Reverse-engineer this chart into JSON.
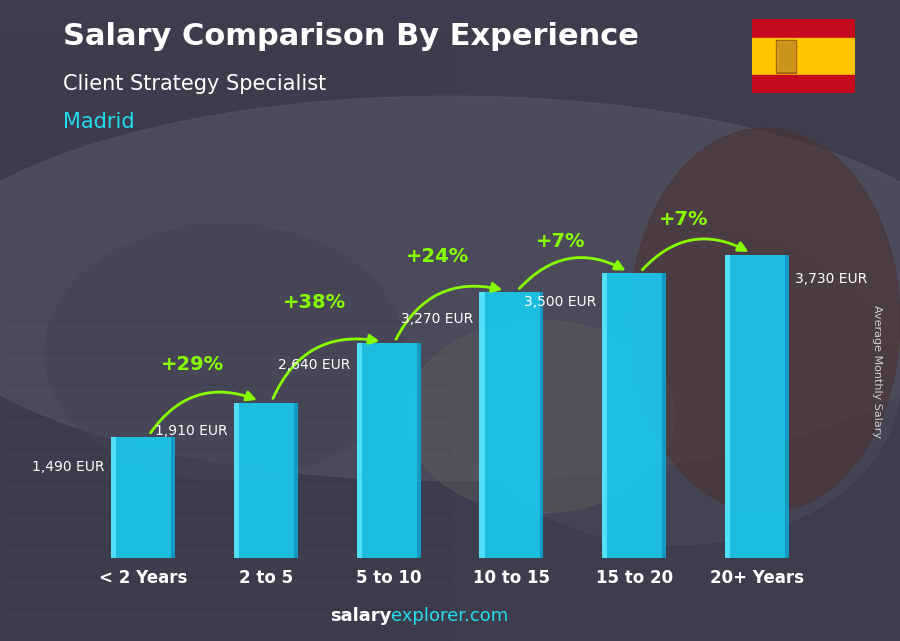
{
  "title_line1": "Salary Comparison By Experience",
  "title_line2": "Client Strategy Specialist",
  "title_line3": "Madrid",
  "categories": [
    "< 2 Years",
    "2 to 5",
    "5 to 10",
    "10 to 15",
    "15 to 20",
    "20+ Years"
  ],
  "values": [
    1490,
    1910,
    2640,
    3270,
    3500,
    3730
  ],
  "pct_changes": [
    "+29%",
    "+38%",
    "+24%",
    "+7%",
    "+7%"
  ],
  "value_labels": [
    "1,490 EUR",
    "1,910 EUR",
    "2,640 EUR",
    "3,270 EUR",
    "3,500 EUR",
    "3,730 EUR"
  ],
  "bar_color_front": "#1ac8ed",
  "bar_color_dark": "#0a7aaa",
  "bar_highlight": "#6aeeff",
  "bg_color": "#3a3a4a",
  "ylabel": "Average Monthly Salary",
  "arrow_color": "#88ff00",
  "pct_color": "#88ff00",
  "value_label_color": "#ffffff",
  "title1_color": "#ffffff",
  "title2_color": "#ffffff",
  "title3_color": "#22ddee",
  "footer_white": "salary",
  "footer_cyan": "explorer.com",
  "ylim_max": 4500,
  "bar_width": 0.52,
  "bar_gap": 0.18
}
